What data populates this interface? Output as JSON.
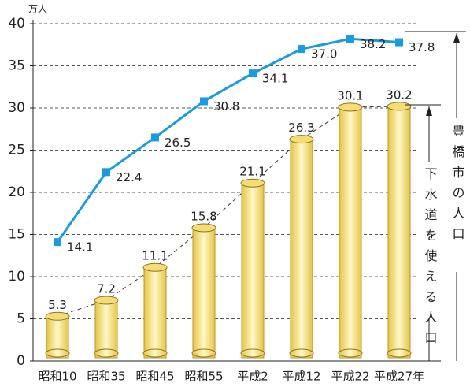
{
  "chart_data": {
    "type": "bar-line",
    "y_unit": "万人",
    "categories": [
      "昭和10",
      "昭和35",
      "昭和45",
      "昭和55",
      "平成2",
      "平成12",
      "平成22",
      "平成27年"
    ],
    "series": [
      {
        "name": "豊橋市の人口",
        "type": "line",
        "color": "#1a9ae0",
        "values": [
          14.1,
          22.4,
          26.5,
          30.8,
          34.1,
          37.0,
          38.2,
          37.8
        ],
        "value_labels": [
          "14.1",
          "22.4",
          "26.5",
          "30.8",
          "34.1",
          "37.0",
          "38.2",
          "37.8"
        ]
      },
      {
        "name": "下水道を使える人口",
        "type": "bar",
        "color": "#f3dd74",
        "values": [
          5.3,
          7.2,
          11.1,
          15.8,
          21.1,
          26.3,
          30.1,
          30.2
        ]
      }
    ],
    "ylim": [
      0,
      40
    ],
    "yticks": [
      0,
      5,
      10,
      15,
      20,
      25,
      30,
      35,
      40
    ],
    "grid": true
  }
}
